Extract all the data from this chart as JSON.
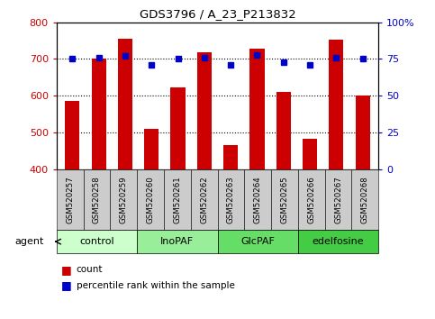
{
  "title": "GDS3796 / A_23_P213832",
  "samples": [
    "GSM520257",
    "GSM520258",
    "GSM520259",
    "GSM520260",
    "GSM520261",
    "GSM520262",
    "GSM520263",
    "GSM520264",
    "GSM520265",
    "GSM520266",
    "GSM520267",
    "GSM520268"
  ],
  "counts": [
    585,
    700,
    755,
    510,
    622,
    718,
    465,
    728,
    610,
    483,
    752,
    600
  ],
  "percentile_ranks": [
    75,
    76,
    77,
    71,
    75,
    76,
    71,
    78,
    73,
    71,
    76,
    75
  ],
  "groups": [
    {
      "label": "control",
      "color": "#ccffcc",
      "start": 0,
      "end": 3
    },
    {
      "label": "InoPAF",
      "color": "#99ee99",
      "start": 3,
      "end": 6
    },
    {
      "label": "GlcPAF",
      "color": "#66dd66",
      "start": 6,
      "end": 9
    },
    {
      "label": "edelfosine",
      "color": "#44cc44",
      "start": 9,
      "end": 12
    }
  ],
  "ylim_left": [
    400,
    800
  ],
  "ylim_right": [
    0,
    100
  ],
  "yticks_left": [
    400,
    500,
    600,
    700,
    800
  ],
  "yticks_right": [
    0,
    25,
    50,
    75,
    100
  ],
  "ytick_labels_right": [
    "0",
    "25",
    "50",
    "75",
    "100%"
  ],
  "bar_color": "#cc0000",
  "dot_color": "#0000cc",
  "bar_width": 0.55,
  "grid_color": "black",
  "sample_bg_color": "#cccccc",
  "left_tick_color": "#cc0000",
  "right_tick_color": "#0000cc",
  "legend_count_color": "#cc0000",
  "legend_pct_color": "#0000cc",
  "xlim": [
    -0.6,
    11.6
  ]
}
